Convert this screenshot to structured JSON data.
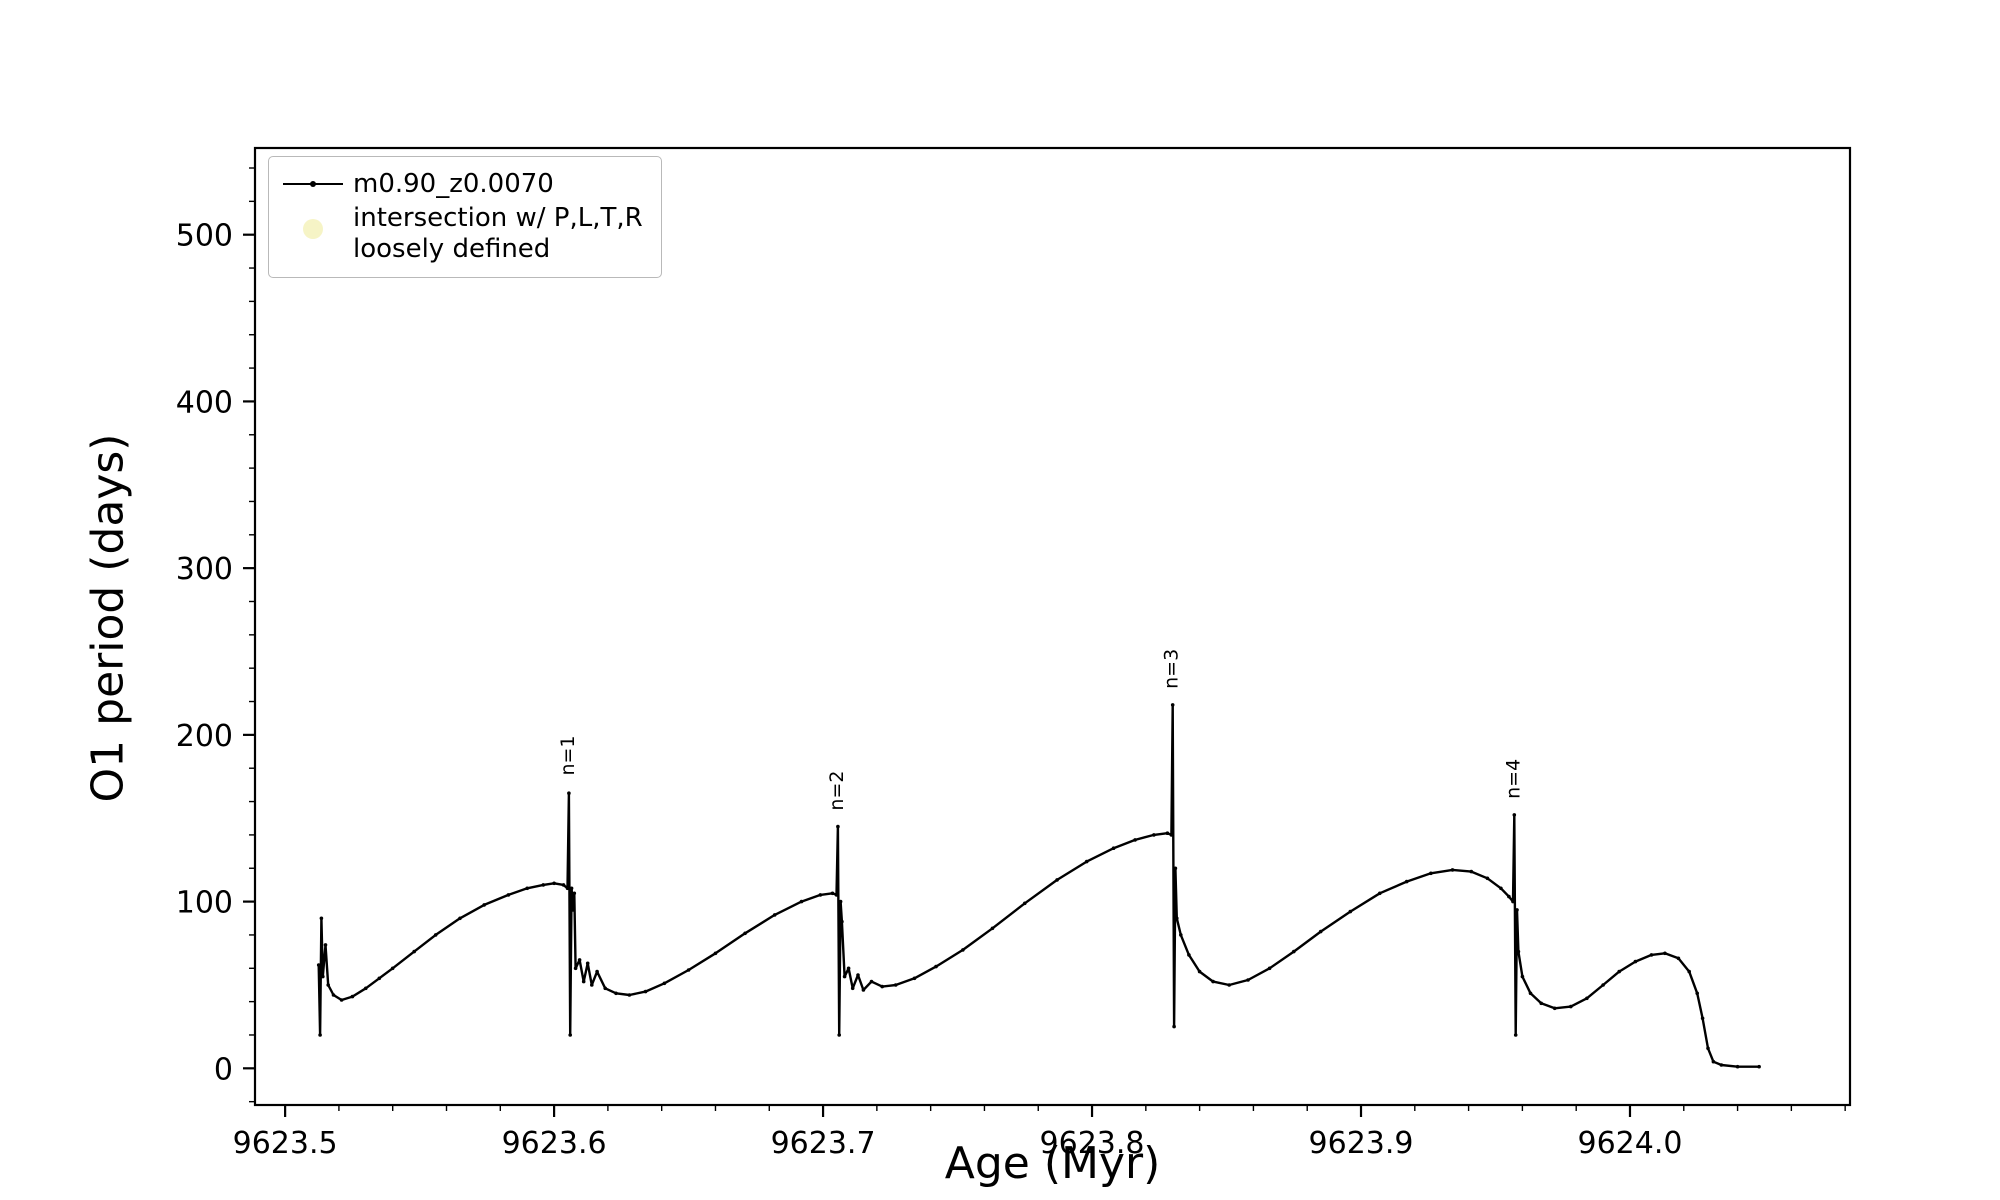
{
  "colors": {
    "axis": "#000000",
    "line": "#000000",
    "background": "#ffffff",
    "legend_marker2": "#eeea8e"
  },
  "chart_data": {
    "type": "line",
    "title": "",
    "xlabel": "Age (Myr)",
    "ylabel": "O1 period (days)",
    "xlim": [
      9623.4888,
      9624.0818
    ],
    "ylim": [
      -22,
      552
    ],
    "grid": false,
    "xticks": {
      "values": [
        9623.5,
        9623.6,
        9623.7,
        9623.8,
        9623.9,
        9624.0
      ],
      "labels": [
        "9623.5",
        "9623.6",
        "9623.7",
        "9623.8",
        "9623.9",
        "9624.0"
      ]
    },
    "yticks": {
      "values": [
        0,
        100,
        200,
        300,
        400,
        500
      ],
      "labels": [
        "0",
        "100",
        "200",
        "300",
        "400",
        "500"
      ]
    },
    "minor_x_step": 0.02,
    "minor_y_step": 20,
    "legend": {
      "position": "upper-left",
      "entries": [
        {
          "type": "line-dot",
          "label": "m0.90_z0.0070",
          "color": "#000000"
        },
        {
          "type": "circle",
          "label_line1": "intersection w/ P,L,T,R",
          "label_line2": "loosely defined",
          "color": "#eeea8e",
          "opacity": 0.5
        }
      ]
    },
    "annotations": [
      {
        "text": "n=1",
        "x": 9623.6055,
        "y": 172,
        "rotation": -90
      },
      {
        "text": "n=2",
        "x": 9623.7055,
        "y": 151,
        "rotation": -90
      },
      {
        "text": "n=3",
        "x": 9623.83,
        "y": 224,
        "rotation": -90
      },
      {
        "text": "n=4",
        "x": 9623.957,
        "y": 158,
        "rotation": -90
      }
    ],
    "series": [
      {
        "name": "m0.90_z0.0070",
        "color": "#000000",
        "marker": "point",
        "points": [
          [
            9623.5125,
            62
          ],
          [
            9623.513,
            20
          ],
          [
            9623.5135,
            90
          ],
          [
            9623.514,
            55
          ],
          [
            9623.515,
            74
          ],
          [
            9623.516,
            50
          ],
          [
            9623.518,
            44
          ],
          [
            9623.521,
            41
          ],
          [
            9623.525,
            43
          ],
          [
            9623.53,
            48
          ],
          [
            9623.535,
            54
          ],
          [
            9623.54,
            60
          ],
          [
            9623.548,
            70
          ],
          [
            9623.556,
            80
          ],
          [
            9623.565,
            90
          ],
          [
            9623.574,
            98
          ],
          [
            9623.583,
            104
          ],
          [
            9623.59,
            108
          ],
          [
            9623.596,
            110
          ],
          [
            9623.6,
            111
          ],
          [
            9623.6035,
            110
          ],
          [
            9623.605,
            108
          ],
          [
            9623.6055,
            165
          ],
          [
            9623.606,
            20
          ],
          [
            9623.6065,
            108
          ],
          [
            9623.607,
            95
          ],
          [
            9623.6075,
            105
          ],
          [
            9623.608,
            60
          ],
          [
            9623.6095,
            65
          ],
          [
            9623.611,
            52
          ],
          [
            9623.6125,
            63
          ],
          [
            9623.614,
            50
          ],
          [
            9623.616,
            58
          ],
          [
            9623.619,
            48
          ],
          [
            9623.623,
            45
          ],
          [
            9623.628,
            44
          ],
          [
            9623.634,
            46
          ],
          [
            9623.641,
            51
          ],
          [
            9623.65,
            59
          ],
          [
            9623.66,
            69
          ],
          [
            9623.671,
            81
          ],
          [
            9623.682,
            92
          ],
          [
            9623.692,
            100
          ],
          [
            9623.699,
            104
          ],
          [
            9623.7035,
            105
          ],
          [
            9623.705,
            104
          ],
          [
            9623.7055,
            145
          ],
          [
            9623.706,
            20
          ],
          [
            9623.7065,
            100
          ],
          [
            9623.707,
            88
          ],
          [
            9623.708,
            55
          ],
          [
            9623.7095,
            60
          ],
          [
            9623.711,
            48
          ],
          [
            9623.713,
            56
          ],
          [
            9623.715,
            47
          ],
          [
            9623.718,
            52
          ],
          [
            9623.722,
            49
          ],
          [
            9623.727,
            50
          ],
          [
            9623.734,
            54
          ],
          [
            9623.742,
            61
          ],
          [
            9623.752,
            71
          ],
          [
            9623.763,
            84
          ],
          [
            9623.775,
            99
          ],
          [
            9623.787,
            113
          ],
          [
            9623.798,
            124
          ],
          [
            9623.808,
            132
          ],
          [
            9623.816,
            137
          ],
          [
            9623.823,
            140
          ],
          [
            9623.828,
            141
          ],
          [
            9623.8295,
            140
          ],
          [
            9623.83,
            218
          ],
          [
            9623.8305,
            25
          ],
          [
            9623.831,
            120
          ],
          [
            9623.8315,
            90
          ],
          [
            9623.833,
            80
          ],
          [
            9623.836,
            68
          ],
          [
            9623.84,
            58
          ],
          [
            9623.845,
            52
          ],
          [
            9623.851,
            50
          ],
          [
            9623.858,
            53
          ],
          [
            9623.866,
            60
          ],
          [
            9623.875,
            70
          ],
          [
            9623.885,
            82
          ],
          [
            9623.896,
            94
          ],
          [
            9623.907,
            105
          ],
          [
            9623.917,
            112
          ],
          [
            9623.926,
            117
          ],
          [
            9623.934,
            119
          ],
          [
            9623.941,
            118
          ],
          [
            9623.947,
            114
          ],
          [
            9623.952,
            108
          ],
          [
            9623.955,
            103
          ],
          [
            9623.9565,
            100
          ],
          [
            9623.957,
            152
          ],
          [
            9623.9575,
            20
          ],
          [
            9623.958,
            95
          ],
          [
            9623.9585,
            70
          ],
          [
            9623.96,
            55
          ],
          [
            9623.963,
            45
          ],
          [
            9623.967,
            39
          ],
          [
            9623.972,
            36
          ],
          [
            9623.978,
            37
          ],
          [
            9623.984,
            42
          ],
          [
            9623.99,
            50
          ],
          [
            9623.996,
            58
          ],
          [
            9624.002,
            64
          ],
          [
            9624.008,
            68
          ],
          [
            9624.013,
            69
          ],
          [
            9624.018,
            66
          ],
          [
            9624.022,
            58
          ],
          [
            9624.025,
            45
          ],
          [
            9624.027,
            30
          ],
          [
            9624.029,
            12
          ],
          [
            9624.031,
            4
          ],
          [
            9624.034,
            2
          ],
          [
            9624.04,
            1
          ],
          [
            9624.048,
            1
          ]
        ]
      }
    ]
  }
}
